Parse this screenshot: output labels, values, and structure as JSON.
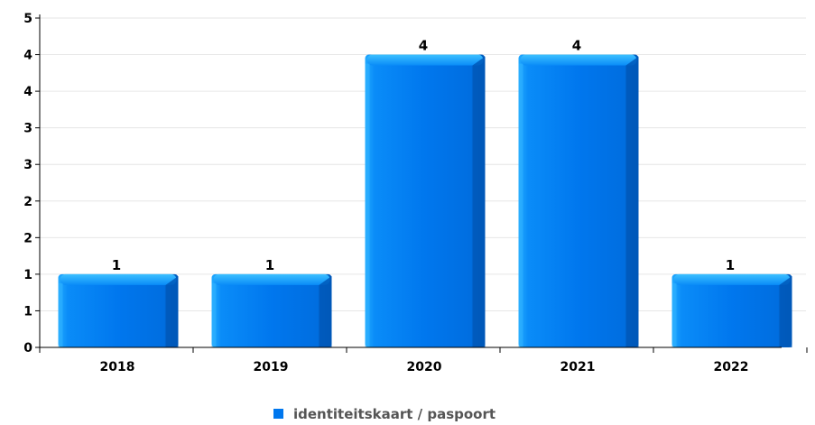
{
  "chart_data": {
    "type": "bar",
    "title": "",
    "xlabel": "",
    "ylabel": "",
    "categories": [
      "2018",
      "2019",
      "2020",
      "2021",
      "2022"
    ],
    "series": [
      {
        "name": "identiteitskaart / paspoort",
        "values": [
          1,
          1,
          4,
          4,
          1
        ],
        "color": "#0077ee"
      }
    ],
    "data_labels": [
      "1",
      "1",
      "4",
      "4",
      "1"
    ],
    "ylim": [
      0,
      4.5
    ],
    "y_tick_values": [
      0,
      0.5,
      1,
      1.5,
      2,
      2.5,
      3,
      3.5,
      4,
      4.5
    ],
    "y_tick_labels": [
      "0",
      "1",
      "1",
      "2",
      "2",
      "3",
      "3",
      "4",
      "4",
      "5"
    ],
    "grid": true,
    "legend_position": "bottom-center"
  },
  "colors": {
    "bar_top": "#17a9f5",
    "bar_body": "#0077ee",
    "bar_shade": "#0058b8",
    "grid": "#e6e6e6",
    "axis": "#000000"
  }
}
